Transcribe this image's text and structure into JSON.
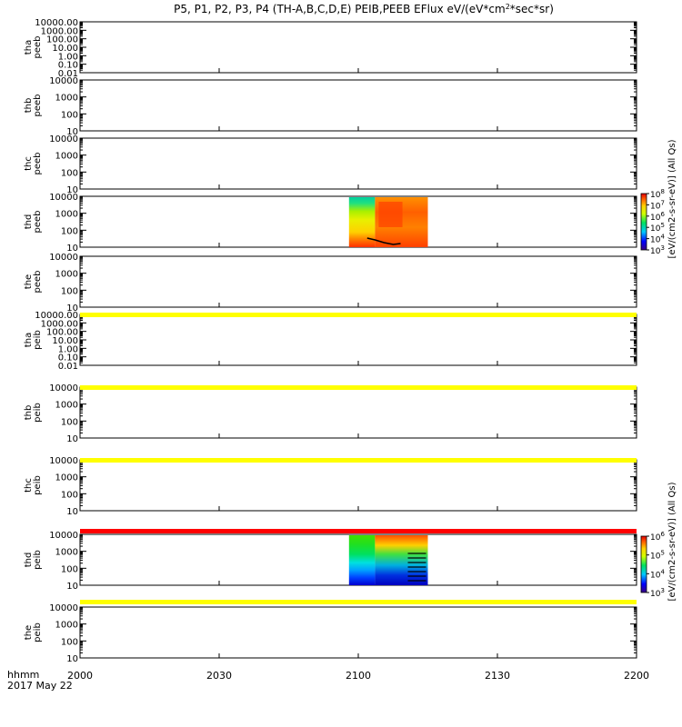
{
  "chart_data": {
    "type": "heatmap",
    "title": "P5, P1, P2, P3, P4 (TH-A,B,C,D,E) PEIB,PEEB EFlux eV/(eV*cm^2*sec*sr)",
    "title_parts": {
      "before_superscript": "P5, P1, P2, P3, P4 (TH-A,B,C,D,E) PEIB,PEEB EFlux eV/(eV*cm",
      "superscript": "2",
      "after_superscript": "*sec*sr)"
    },
    "xaxis": {
      "corner_label_1": "hhmm",
      "corner_label_2": "2017 May 22",
      "range": [
        2000,
        2200
      ],
      "ticks": [
        {
          "value": 2000,
          "label": "2000"
        },
        {
          "value": 2030,
          "label": "2030"
        },
        {
          "value": 2100,
          "label": "2100"
        },
        {
          "value": 2130,
          "label": "2130"
        },
        {
          "value": 2200,
          "label": "2200"
        }
      ]
    },
    "yscale": "log",
    "panels": [
      {
        "probe": "tha",
        "product": "peeb",
        "ylim": [
          0.01,
          10000
        ],
        "tick_labels": [
          "10000.00",
          "1000.00",
          "100.00",
          "10.00",
          "1.00",
          "0.10",
          "0.01"
        ],
        "has_data": false
      },
      {
        "probe": "thb",
        "product": "peeb",
        "ylim": [
          10,
          10000
        ],
        "tick_labels": [
          "10000",
          "1000",
          "100",
          "10"
        ],
        "has_data": false
      },
      {
        "probe": "thc",
        "product": "peeb",
        "ylim": [
          10,
          10000
        ],
        "tick_labels": [
          "10000",
          "1000",
          "100",
          "10"
        ],
        "has_data": false
      },
      {
        "probe": "thd",
        "product": "peeb",
        "ylim": [
          10,
          10000
        ],
        "tick_labels": [
          "10000",
          "1000",
          "100",
          "10"
        ],
        "has_data": true,
        "data_time_range": [
          2058,
          2115
        ],
        "colorbar_ref": 0
      },
      {
        "probe": "the",
        "product": "peeb",
        "ylim": [
          10,
          10000
        ],
        "tick_labels": [
          "10000",
          "1000",
          "100",
          "10"
        ],
        "has_data": false
      },
      {
        "probe": "tha",
        "product": "peib",
        "ylim": [
          0.01,
          10000
        ],
        "tick_labels": [
          "10000.00",
          "1000.00",
          "100.00",
          "10.00",
          "1.00",
          "0.10",
          "0.01"
        ],
        "has_data": false
      },
      {
        "probe": "thb",
        "product": "peib",
        "ylim": [
          10,
          10000
        ],
        "tick_labels": [
          "10000",
          "1000",
          "100",
          "10"
        ],
        "has_data": false
      },
      {
        "probe": "thc",
        "product": "peib",
        "ylim": [
          10,
          10000
        ],
        "tick_labels": [
          "10000",
          "1000",
          "100",
          "10"
        ],
        "has_data": false
      },
      {
        "probe": "thd",
        "product": "peib",
        "ylim": [
          10,
          10000
        ],
        "tick_labels": [
          "10000",
          "1000",
          "100",
          "10"
        ],
        "has_data": true,
        "data_time_range": [
          2058,
          2115
        ],
        "colorbar_ref": 1
      },
      {
        "probe": "the",
        "product": "peib",
        "ylim": [
          10,
          10000
        ],
        "tick_labels": [
          "10000",
          "1000",
          "100",
          "10"
        ],
        "has_data": false
      }
    ],
    "flag_bars": [
      {
        "after_panel": 4,
        "color": "#ffff00"
      },
      {
        "after_panel": 5,
        "color": "#ffff00"
      },
      {
        "after_panel": 6,
        "color": "#ffff00"
      },
      {
        "after_panel": 7,
        "color": "#ff0000"
      },
      {
        "after_panel": 8,
        "color": "#ffff00"
      }
    ],
    "colorbars": [
      {
        "label": "[eV/(cm^2-s-sr-eV)] (All Qs)",
        "label_text": "[eV/(cm2-s-sr-eV)] (All Qs)",
        "min_exp": 3,
        "max_exp": 8,
        "tick_exps": [
          "8",
          "7",
          "6",
          "5",
          "4",
          "3"
        ]
      },
      {
        "label": "[eV/(cm^2-s-sr-eV)] (All Qs)",
        "label_text": "[eV/(cm2-s-sr-eV)] (All Qs)",
        "min_exp": 3,
        "max_exp": 6,
        "tick_exps": [
          "6",
          "5",
          "4",
          "3"
        ]
      }
    ]
  }
}
